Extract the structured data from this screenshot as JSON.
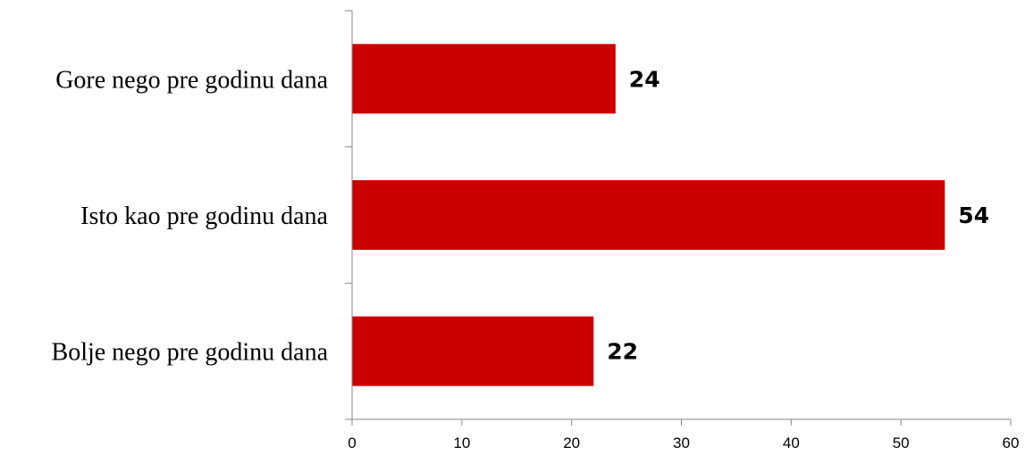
{
  "chart_data": {
    "type": "bar",
    "orientation": "horizontal",
    "categories": [
      "Gore nego pre godinu dana",
      "Isto kao pre godinu dana",
      "Bolje nego pre godinu dana"
    ],
    "values": [
      24,
      54,
      22
    ],
    "data_labels": [
      "24",
      "54",
      "22"
    ],
    "xlim": [
      0,
      60
    ],
    "x_ticks": [
      0,
      10,
      20,
      30,
      40,
      50,
      60
    ],
    "x_tick_labels": [
      "0",
      "10",
      "20",
      "30",
      "40",
      "50",
      "60"
    ],
    "grid": false,
    "legend": false,
    "bar_color": "#cc0000",
    "title": "",
    "xlabel": "",
    "ylabel": ""
  }
}
